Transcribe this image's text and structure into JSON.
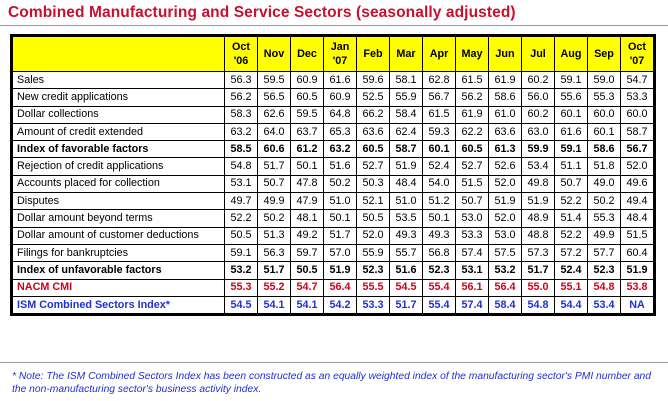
{
  "title": "Combined Manufacturing and Service Sectors (seasonally adjusted)",
  "header": {
    "label": "",
    "months": [
      [
        "Oct",
        "'06"
      ],
      [
        "Nov",
        ""
      ],
      [
        "Dec",
        ""
      ],
      [
        "Jan",
        "'07"
      ],
      [
        "Feb",
        ""
      ],
      [
        "Mar",
        ""
      ],
      [
        "Apr",
        ""
      ],
      [
        "May",
        ""
      ],
      [
        "Jun",
        ""
      ],
      [
        "Jul",
        ""
      ],
      [
        "Aug",
        ""
      ],
      [
        "Sep",
        ""
      ],
      [
        "Oct",
        "'07"
      ]
    ]
  },
  "rows": [
    {
      "label": "Sales",
      "style": "normal",
      "values": [
        "56.3",
        "59.5",
        "60.9",
        "61.6",
        "59.6",
        "58.1",
        "62.8",
        "61.5",
        "61.9",
        "60.2",
        "59.1",
        "59.0",
        "54.7"
      ]
    },
    {
      "label": "New credit applications",
      "style": "normal",
      "values": [
        "56.2",
        "56.5",
        "60.5",
        "60.9",
        "52.5",
        "55.9",
        "56.7",
        "56.2",
        "58.6",
        "56.0",
        "55.6",
        "55.3",
        "53.3"
      ]
    },
    {
      "label": "Dollar collections",
      "style": "normal",
      "values": [
        "58.3",
        "62.6",
        "59.5",
        "64.8",
        "66.2",
        "58.4",
        "61.5",
        "61.9",
        "61.0",
        "60.2",
        "60.1",
        "60.0",
        "60.0"
      ]
    },
    {
      "label": "Amount of credit extended",
      "style": "normal",
      "values": [
        "63.2",
        "64.0",
        "63.7",
        "65.3",
        "63.6",
        "62.4",
        "59.3",
        "62.2",
        "63.6",
        "63.0",
        "61.6",
        "60.1",
        "58.7"
      ]
    },
    {
      "label": "Index of favorable factors",
      "style": "bold",
      "values": [
        "58.5",
        "60.6",
        "61.2",
        "63.2",
        "60.5",
        "58.7",
        "60.1",
        "60.5",
        "61.3",
        "59.9",
        "59.1",
        "58.6",
        "56.7"
      ]
    },
    {
      "label": "Rejection of credit applications",
      "style": "normal",
      "values": [
        "54.8",
        "51.7",
        "50.1",
        "51.6",
        "52.7",
        "51.9",
        "52.4",
        "52.7",
        "52.6",
        "53.4",
        "51.1",
        "51.8",
        "52.0"
      ]
    },
    {
      "label": "Accounts placed for collection",
      "style": "normal",
      "values": [
        "53.1",
        "50.7",
        "47.8",
        "50.2",
        "50.3",
        "48.4",
        "54.0",
        "51.5",
        "52.0",
        "49.8",
        "50.7",
        "49.0",
        "49.6"
      ]
    },
    {
      "label": "Disputes",
      "style": "normal",
      "values": [
        "49.7",
        "49.9",
        "47.9",
        "51.0",
        "52.1",
        "51.0",
        "51.2",
        "50.7",
        "51.9",
        "51.9",
        "52.2",
        "50.2",
        "49.4"
      ]
    },
    {
      "label": "Dollar amount beyond terms",
      "style": "normal",
      "values": [
        "52.2",
        "50.2",
        "48.1",
        "50.1",
        "50.5",
        "53.5",
        "50.1",
        "53.0",
        "52.0",
        "48.9",
        "51.4",
        "55.3",
        "48.4"
      ]
    },
    {
      "label": "Dollar amount of customer deductions",
      "style": "normal",
      "values": [
        "50.5",
        "51.3",
        "49.2",
        "51.7",
        "52.0",
        "49.3",
        "49.3",
        "53.3",
        "53.0",
        "48.8",
        "52.2",
        "49.9",
        "51.5"
      ]
    },
    {
      "label": "Filings for bankruptcies",
      "style": "normal",
      "values": [
        "59.1",
        "56.3",
        "59.7",
        "57.0",
        "55.9",
        "55.7",
        "56.8",
        "57.4",
        "57.5",
        "57.3",
        "57.2",
        "57.7",
        "60.4"
      ]
    },
    {
      "label": "Index of unfavorable factors",
      "style": "bold",
      "values": [
        "53.2",
        "51.7",
        "50.5",
        "51.9",
        "52.3",
        "51.6",
        "52.3",
        "53.1",
        "53.2",
        "51.7",
        "52.4",
        "52.3",
        "51.9"
      ]
    },
    {
      "label": "NACM CMI",
      "style": "nacm",
      "values": [
        "55.3",
        "55.2",
        "54.7",
        "56.4",
        "55.5",
        "54.5",
        "55.4",
        "56.1",
        "56.4",
        "55.0",
        "55.1",
        "54.8",
        "53.8"
      ]
    },
    {
      "label": "ISM Combined Sectors Index*",
      "style": "ism",
      "values": [
        "54.5",
        "54.1",
        "54.1",
        "54.2",
        "53.3",
        "51.7",
        "55.4",
        "57.4",
        "58.4",
        "54.8",
        "54.4",
        "53.4",
        "NA"
      ]
    }
  ],
  "note": "* Note: The ISM Combined Sectors Index has been constructed as an equally weighted index of the manufacturing sector's PMI number and the non-manufacturing sector's business activity index.",
  "colors": {
    "title": "#c8102e",
    "header_bg": "#ffff00",
    "nacm": "#d0021b",
    "ism": "#1f2fd6"
  }
}
